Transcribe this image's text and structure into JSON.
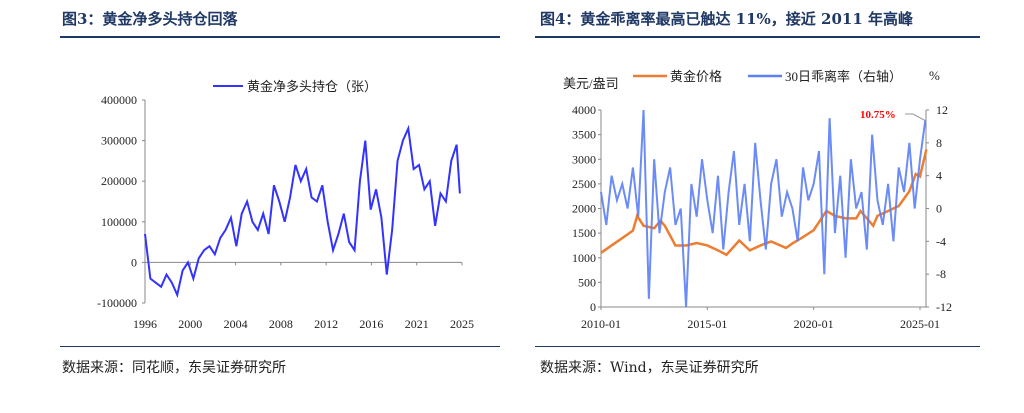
{
  "left": {
    "title": "图3：黄金净多头持仓回落",
    "source": "数据来源：同花顺，东吴证券研究所"
  },
  "right": {
    "title": "图4：黄金乖离率最高已触达 11%，接近 2011 年高峰",
    "source": "数据来源：Wind，东吴证券研究所"
  },
  "colors": {
    "title": "#1f3864",
    "net_long": "#3333ff",
    "gold": "#ed7d31",
    "deviation": "#5b7ff5",
    "annotation": "#ff0000"
  },
  "chart_data": [
    {
      "type": "line",
      "legend": "黄金净多头持仓（张）",
      "legend_placement": "top",
      "x_tick_labels": [
        "1996",
        "2000",
        "2004",
        "2008",
        "2012",
        "2016",
        "2021",
        "2025"
      ],
      "xlim": [
        1996,
        2025.5
      ],
      "ylim": [
        -100000,
        400000
      ],
      "y_ticks": [
        "400000",
        "300000",
        "200000",
        "100000",
        "0",
        "-100000"
      ],
      "series": [
        {
          "name": "黄金净多头持仓（张）",
          "x": [
            1996,
            1996.5,
            1997,
            1997.5,
            1998,
            1998.5,
            1999,
            1999.5,
            2000,
            2000.5,
            2001,
            2001.5,
            2002,
            2002.5,
            2003,
            2003.5,
            2004,
            2004.5,
            2005,
            2005.5,
            2006,
            2006.5,
            2007,
            2007.5,
            2008,
            2008.5,
            2009,
            2009.5,
            2010,
            2010.5,
            2011,
            2011.5,
            2012,
            2012.5,
            2013,
            2013.5,
            2014,
            2014.5,
            2015,
            2015.5,
            2016,
            2016.5,
            2017,
            2017.5,
            2018,
            2018.5,
            2019,
            2019.5,
            2020,
            2020.5,
            2021,
            2021.5,
            2022,
            2022.5,
            2023,
            2023.5,
            2024,
            2024.5,
            2025,
            2025.3
          ],
          "values": [
            70000,
            -40000,
            -50000,
            -60000,
            -30000,
            -50000,
            -80000,
            -20000,
            0,
            -40000,
            10000,
            30000,
            40000,
            20000,
            60000,
            80000,
            110000,
            40000,
            120000,
            150000,
            100000,
            80000,
            120000,
            70000,
            190000,
            150000,
            100000,
            160000,
            240000,
            200000,
            230000,
            160000,
            150000,
            190000,
            100000,
            30000,
            70000,
            120000,
            50000,
            30000,
            200000,
            300000,
            130000,
            180000,
            110000,
            -30000,
            80000,
            250000,
            300000,
            330000,
            230000,
            240000,
            180000,
            200000,
            90000,
            170000,
            150000,
            250000,
            290000,
            170000
          ]
        }
      ]
    },
    {
      "type": "line",
      "dual_axis": true,
      "y_left_label": "美元/盎司",
      "y_right_label": "%",
      "x_tick_labels": [
        "2010-01",
        "2015-01",
        "2020-01",
        "2025-01"
      ],
      "xlim": [
        2010,
        2025.3
      ],
      "ylim_left": [
        0,
        4000
      ],
      "ylim_right": [
        -12,
        12
      ],
      "y_left_ticks": [
        "4000",
        "3500",
        "3000",
        "2500",
        "2000",
        "1500",
        "1000",
        "500",
        "0"
      ],
      "y_right_ticks": [
        "12",
        "8",
        "4",
        "0",
        "-4",
        "-8",
        "-12"
      ],
      "annotation": "10.75%",
      "series": [
        {
          "name": "黄金价格",
          "axis": "left",
          "x": [
            2010,
            2010.5,
            2011,
            2011.5,
            2011.7,
            2012,
            2012.5,
            2012.8,
            2013,
            2013.5,
            2014,
            2014.5,
            2015,
            2015.5,
            2015.9,
            2016.5,
            2017,
            2017.5,
            2018,
            2018.7,
            2019,
            2019.5,
            2020,
            2020.6,
            2021,
            2021.5,
            2022,
            2022.2,
            2022.8,
            2023,
            2023.5,
            2024,
            2024.5,
            2024.8,
            2025,
            2025.3
          ],
          "values": [
            1100,
            1250,
            1400,
            1550,
            1850,
            1650,
            1600,
            1750,
            1650,
            1250,
            1250,
            1300,
            1250,
            1150,
            1060,
            1350,
            1150,
            1250,
            1330,
            1200,
            1290,
            1420,
            1560,
            1950,
            1850,
            1800,
            1800,
            1950,
            1650,
            1850,
            1950,
            2050,
            2350,
            2700,
            2650,
            3200
          ]
        },
        {
          "name": "30日乖离率（右轴）",
          "axis": "right",
          "x_start": 2010,
          "x_step": 0.25,
          "values": [
            2,
            -2,
            4,
            1,
            3,
            0,
            5,
            -1,
            12,
            -11,
            6,
            -3,
            2,
            5,
            -2,
            0,
            -12,
            3,
            -1,
            6,
            1,
            -3,
            4,
            -5,
            2,
            7,
            -2,
            3,
            -4,
            8,
            1,
            -5,
            3,
            6,
            -1,
            2,
            0,
            -4,
            5,
            1,
            3,
            7,
            -8,
            11,
            -3,
            4,
            -6,
            6,
            0,
            2,
            -5,
            9,
            1,
            -2,
            3,
            -4,
            5,
            2,
            8,
            0,
            6,
            10.75
          ]
        }
      ]
    }
  ]
}
